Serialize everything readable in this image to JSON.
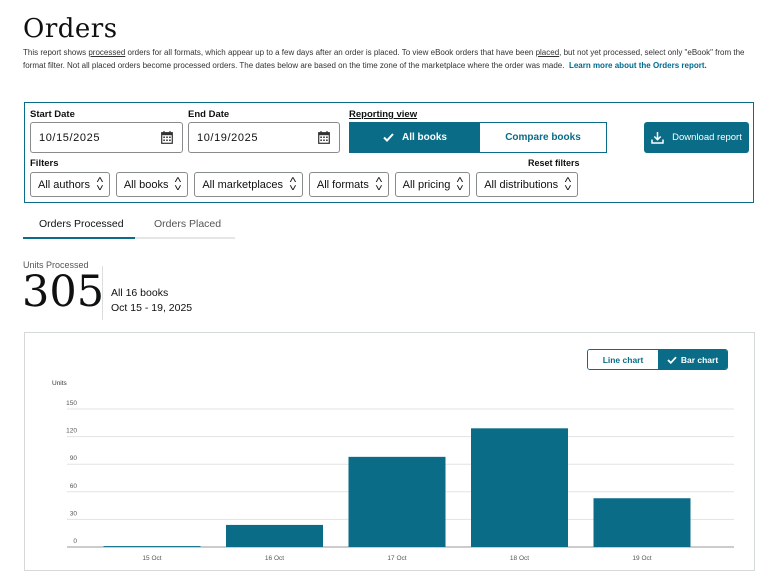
{
  "page": {
    "title": "Orders",
    "description": {
      "p1": "This report shows ",
      "processed_link": "processed",
      "p2": " orders for all formats, which appear up to a few days after an order is placed. To view eBook orders that have been ",
      "placed_link": "placed",
      "p3": ", but not yet processed, select only \"eBook\" from the format filter. Not all placed orders become processed orders. The dates below are based on the time zone of the marketplace where the order was made.",
      "learn_more": "Learn more about the Orders report."
    }
  },
  "filters_panel": {
    "start_date_label": "Start Date",
    "start_date_value": "10/15/2025",
    "end_date_label": "End Date",
    "end_date_value": "10/19/2025",
    "reporting_view_label": "Reporting view",
    "view_selected": "All books",
    "view_other": "Compare books",
    "download_label": "Download report",
    "filters_label": "Filters",
    "reset_label": "Reset filters",
    "filters": [
      "All authors",
      "All books",
      "All marketplaces",
      "All formats",
      "All pricing",
      "All distributions"
    ]
  },
  "tabs": {
    "active": "Orders Processed",
    "inactive": "Orders Placed"
  },
  "summary": {
    "label": "Units Processed",
    "value": "305",
    "scope": "All 16 books",
    "range": "Oct 15 - 19, 2025"
  },
  "chart_toggle": {
    "line": "Line chart",
    "bar": "Bar chart",
    "selected": "bar"
  },
  "colors": {
    "accent": "#0a6c86",
    "bar": "#0a6c86"
  },
  "chart_data": {
    "type": "bar",
    "ylabel": "Units",
    "categories": [
      "15 Oct",
      "16 Oct",
      "17 Oct",
      "18 Oct",
      "19 Oct"
    ],
    "values": [
      1,
      24,
      98,
      129,
      53
    ],
    "ylim": [
      0,
      150
    ],
    "yticks": [
      0,
      30,
      60,
      90,
      120,
      150
    ],
    "grid": true
  }
}
